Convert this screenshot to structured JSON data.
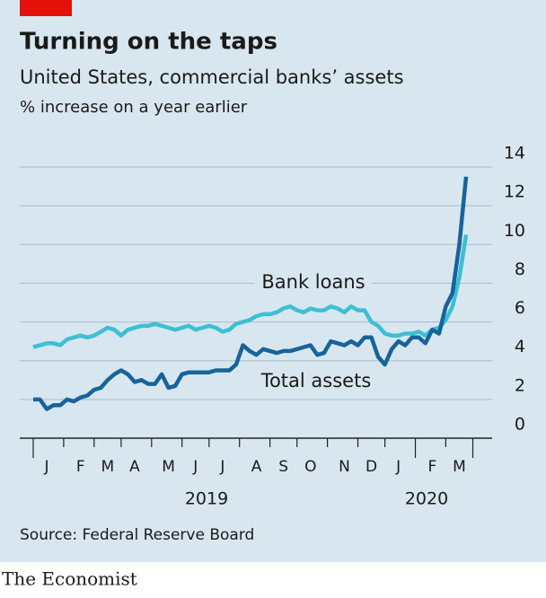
{
  "chart_data": {
    "type": "line",
    "title": "Turning on the taps",
    "subtitle": "United States, commercial banks’ assets",
    "y_label": "% increase on a year earlier",
    "source": "Source: Federal Reserve Board",
    "brand": "The Economist",
    "year_labels": [
      "2019",
      "2020"
    ],
    "categories": [
      null,
      null,
      "J",
      null,
      null,
      null,
      null,
      "F",
      null,
      null,
      null,
      "M",
      null,
      null,
      null,
      "A",
      null,
      null,
      null,
      null,
      "M",
      null,
      null,
      null,
      "J",
      null,
      null,
      null,
      "J",
      null,
      null,
      null,
      null,
      "A",
      null,
      null,
      null,
      "S",
      null,
      null,
      null,
      "O",
      null,
      null,
      null,
      null,
      "N",
      null,
      null,
      null,
      "D",
      null,
      null,
      null,
      "J",
      null,
      null,
      null,
      null,
      "F",
      null,
      null,
      null,
      "M",
      null
    ],
    "series": [
      {
        "name": "Bank loans",
        "color": "#3dbfd4",
        "values": [
          4.7,
          4.8,
          4.9,
          4.9,
          4.8,
          5.1,
          5.2,
          5.3,
          5.2,
          5.3,
          5.5,
          5.7,
          5.6,
          5.3,
          5.6,
          5.7,
          5.8,
          5.8,
          5.9,
          5.8,
          5.7,
          5.6,
          5.7,
          5.8,
          5.6,
          5.7,
          5.8,
          5.7,
          5.5,
          5.6,
          5.9,
          6.0,
          6.1,
          6.3,
          6.4,
          6.4,
          6.5,
          6.7,
          6.8,
          6.6,
          6.5,
          6.7,
          6.6,
          6.6,
          6.8,
          6.7,
          6.5,
          6.8,
          6.6,
          6.6,
          6.0,
          5.8,
          5.4,
          5.3,
          5.3,
          5.4,
          5.4,
          5.5,
          5.3,
          5.6,
          5.7,
          6.1,
          6.8,
          8.3,
          10.5
        ]
      },
      {
        "name": "Total assets",
        "color": "#17649a",
        "values": [
          2.0,
          2.0,
          1.5,
          1.7,
          1.7,
          2.0,
          1.9,
          2.1,
          2.2,
          2.5,
          2.6,
          3.0,
          3.3,
          3.5,
          3.3,
          2.9,
          3.0,
          2.8,
          2.8,
          3.3,
          2.6,
          2.7,
          3.3,
          3.4,
          3.4,
          3.4,
          3.4,
          3.5,
          3.5,
          3.5,
          3.8,
          4.8,
          4.5,
          4.3,
          4.6,
          4.5,
          4.4,
          4.5,
          4.5,
          4.6,
          4.7,
          4.8,
          4.3,
          4.4,
          5.0,
          4.9,
          4.8,
          5.0,
          4.8,
          5.2,
          5.2,
          4.2,
          3.8,
          4.6,
          5.0,
          4.8,
          5.2,
          5.2,
          4.9,
          5.6,
          5.4,
          6.8,
          7.5,
          10.0,
          13.5
        ]
      }
    ],
    "ylim": [
      0,
      14
    ],
    "yticks": [
      0,
      2,
      4,
      6,
      8,
      10,
      12,
      14
    ],
    "grid": true
  }
}
